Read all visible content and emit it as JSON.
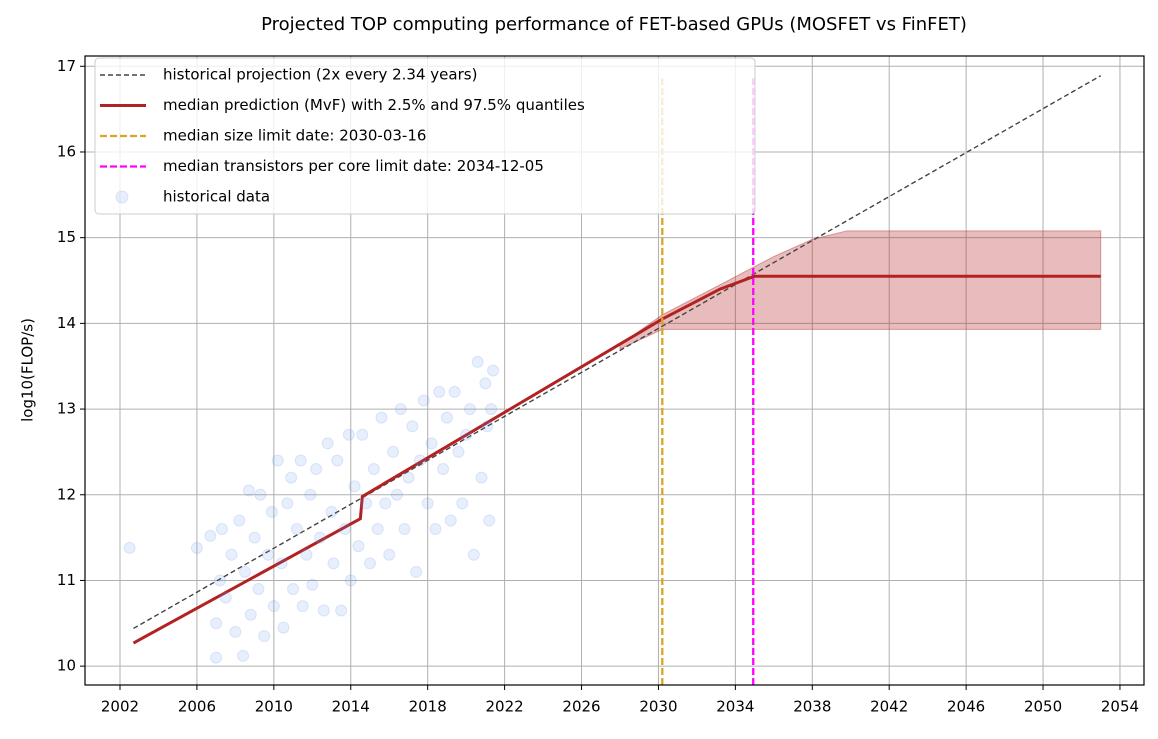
{
  "chart_data": {
    "type": "line",
    "title": "Projected TOP computing performance of FET-based GPUs (MOSFET vs FinFET)",
    "y_label": "log10(FLOP/s)",
    "xlim": [
      2000.18,
      2055.25
    ],
    "ylim": [
      9.78,
      17.12
    ],
    "xticks": [
      2002,
      2006,
      2010,
      2014,
      2018,
      2022,
      2026,
      2030,
      2034,
      2038,
      2042,
      2046,
      2050,
      2054
    ],
    "yticks": [
      10,
      11,
      12,
      13,
      14,
      15,
      16,
      17
    ],
    "grid": true,
    "legend": "upper left",
    "series": [
      {
        "name": "historical projection (2x every 2.34 years)",
        "type": "line",
        "dashed": true,
        "color": "#444444",
        "x": [
          2002.7,
          2053
        ],
        "values": [
          10.44,
          16.89
        ]
      },
      {
        "name": "median prediction (MvF) with 2.5% and 97.5% quantiles",
        "type": "line",
        "dashed": false,
        "color": "#b22222",
        "x": [
          2002.7,
          2014.5,
          2014.6,
          2030.2,
          2033.2,
          2035,
          2053
        ],
        "values": [
          10.27,
          11.72,
          11.98,
          14.05,
          14.4,
          14.55,
          14.55
        ]
      },
      {
        "name": "historical data",
        "type": "scatter",
        "color": "#6495ed",
        "x": [
          2002.5,
          2006.0,
          2006.7,
          2007.0,
          2007.0,
          2007.2,
          2007.3,
          2007.5,
          2007.8,
          2008.0,
          2008.2,
          2008.4,
          2008.5,
          2008.7,
          2008.8,
          2009.0,
          2009.2,
          2009.3,
          2009.5,
          2009.7,
          2009.9,
          2010.0,
          2010.2,
          2010.4,
          2010.5,
          2010.7,
          2010.9,
          2011.0,
          2011.2,
          2011.4,
          2011.5,
          2011.7,
          2011.9,
          2012.0,
          2012.2,
          2012.4,
          2012.6,
          2012.8,
          2013.0,
          2013.1,
          2013.3,
          2013.5,
          2013.7,
          2013.9,
          2014.0,
          2014.2,
          2014.4,
          2014.6,
          2014.8,
          2015.0,
          2015.2,
          2015.4,
          2015.6,
          2015.8,
          2016.0,
          2016.2,
          2016.4,
          2016.6,
          2016.8,
          2017.0,
          2017.2,
          2017.4,
          2017.6,
          2017.8,
          2018.0,
          2018.2,
          2018.4,
          2018.6,
          2018.8,
          2019.0,
          2019.2,
          2019.4,
          2019.6,
          2019.8,
          2020.0,
          2020.2,
          2020.4,
          2020.6,
          2020.8,
          2021.0,
          2021.1,
          2021.2,
          2021.3,
          2021.4
        ],
        "values": [
          11.38,
          11.38,
          11.52,
          10.1,
          10.5,
          11.0,
          11.6,
          10.8,
          11.3,
          10.4,
          11.7,
          10.12,
          11.1,
          12.05,
          10.6,
          11.5,
          10.9,
          12.0,
          10.35,
          11.3,
          11.8,
          10.7,
          12.4,
          11.2,
          10.45,
          11.9,
          12.2,
          10.9,
          11.6,
          12.4,
          10.7,
          11.3,
          12.0,
          10.95,
          12.3,
          11.5,
          10.65,
          12.6,
          11.8,
          11.2,
          12.4,
          10.65,
          11.6,
          12.7,
          11.0,
          12.1,
          11.4,
          12.7,
          11.9,
          11.2,
          12.3,
          11.6,
          12.9,
          11.9,
          11.3,
          12.5,
          12.0,
          13.0,
          11.6,
          12.2,
          12.8,
          11.1,
          12.4,
          13.1,
          11.9,
          12.6,
          11.6,
          13.2,
          12.3,
          12.9,
          11.7,
          13.2,
          12.5,
          11.9,
          12.7,
          13.0,
          11.3,
          13.55,
          12.2,
          13.3,
          12.8,
          11.7,
          13.0,
          13.45
        ]
      }
    ],
    "band": {
      "color": "#b22222",
      "x": [
        2028,
        2030.2,
        2033.2,
        2036,
        2038,
        2039.8,
        2053
      ],
      "lower": [
        13.7,
        13.93,
        13.93,
        13.93,
        13.93,
        13.93,
        13.93
      ],
      "upper": [
        13.75,
        14.1,
        14.45,
        14.78,
        14.98,
        15.08,
        15.08
      ]
    },
    "vlines": [
      {
        "name": "median size limit date: 2030-03-16",
        "color": "#daa520",
        "x": 2030.2,
        "ymax": 16.86
      },
      {
        "name": "median transistors per core limit date: 2034-12-05",
        "color": "#ff00ff",
        "x": 2034.93,
        "ymax": 16.86
      }
    ]
  }
}
